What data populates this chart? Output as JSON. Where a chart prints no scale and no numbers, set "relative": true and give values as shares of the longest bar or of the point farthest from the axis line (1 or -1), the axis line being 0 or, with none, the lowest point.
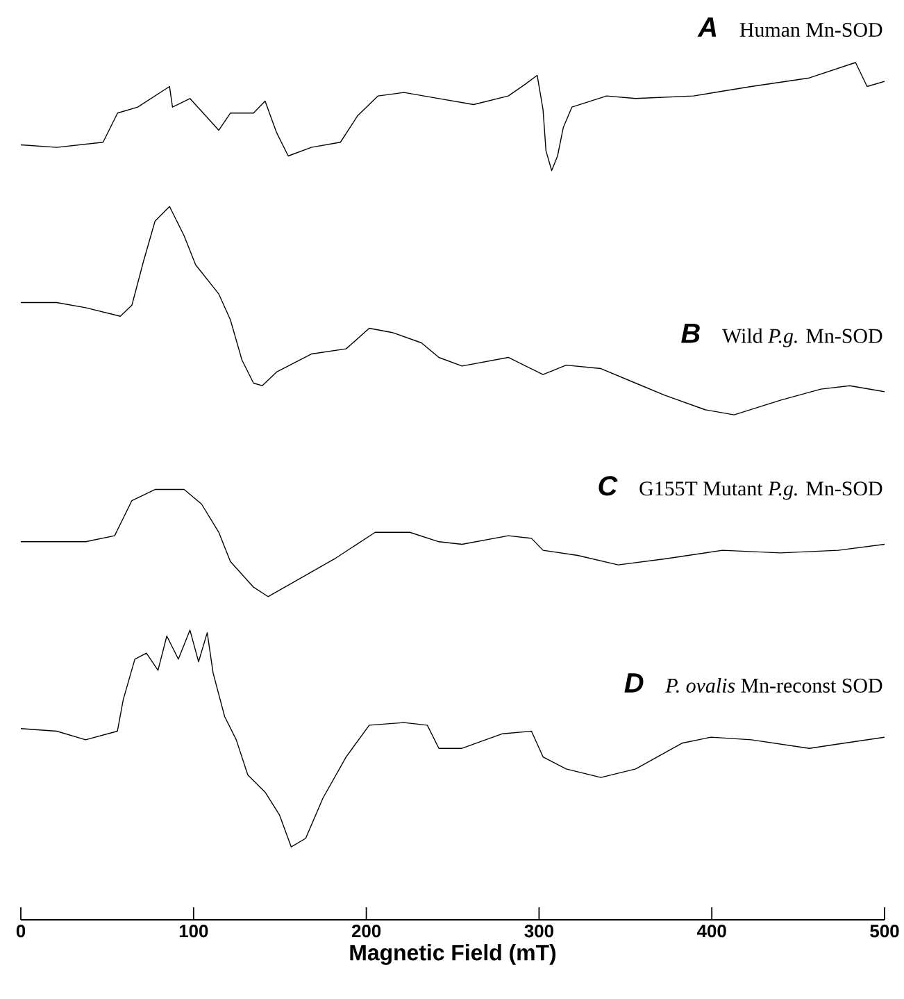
{
  "chart_data": {
    "type": "line",
    "xlabel": "Magnetic Field (mT)",
    "xlim": [
      0,
      500
    ],
    "xticks": [
      0,
      100,
      200,
      300,
      400,
      500
    ],
    "relative": true,
    "tick_labels": "x",
    "grid": false,
    "marker": "none",
    "line_style": "solid",
    "annotations": [
      "A",
      "B",
      "C",
      "D"
    ],
    "series": [
      {
        "name": "Human Mn-SOD",
        "color": "#000000",
        "x": [
          0,
          20.8,
          47.6,
          56.0,
          67.7,
          86.1,
          87.8,
          97.9,
          114.6,
          121.3,
          134.7,
          141.4,
          148.1,
          154.8,
          168.2,
          185.0,
          195.0,
          206.8,
          221.8,
          242.0,
          262.1,
          282.2,
          292.2,
          298.9,
          302.3,
          304.0,
          307.3,
          310.7,
          314.0,
          319.0,
          339.1,
          355.9,
          389.4,
          422.9,
          456.4,
          483.2,
          489.9,
          500
        ],
        "values": [
          0.904,
          0.901,
          0.907,
          0.941,
          0.948,
          0.972,
          0.948,
          0.958,
          0.921,
          0.941,
          0.941,
          0.955,
          0.918,
          0.891,
          0.901,
          0.907,
          0.938,
          0.961,
          0.965,
          0.958,
          0.951,
          0.961,
          0.975,
          0.985,
          0.945,
          0.897,
          0.874,
          0.891,
          0.924,
          0.948,
          0.961,
          0.958,
          0.961,
          0.972,
          0.982,
          1.0,
          0.972,
          0.978
        ]
      },
      {
        "name": "Wild *P.g.* Mn-SOD",
        "color": "#000000",
        "x": [
          0,
          20.8,
          37.5,
          57.6,
          64.3,
          71.0,
          77.7,
          86.1,
          94.5,
          101.2,
          114.6,
          121.3,
          128.0,
          134.7,
          139.7,
          148.1,
          168.2,
          188.3,
          201.7,
          215.1,
          231.9,
          242.0,
          255.4,
          282.2,
          302.3,
          315.7,
          335.8,
          355.9,
          372.7,
          396.1,
          412.9,
          439.7,
          463.1,
          479.9,
          500
        ],
        "values": [
          0.72,
          0.72,
          0.714,
          0.704,
          0.717,
          0.768,
          0.815,
          0.832,
          0.798,
          0.764,
          0.73,
          0.7,
          0.653,
          0.626,
          0.623,
          0.639,
          0.66,
          0.666,
          0.69,
          0.685,
          0.673,
          0.656,
          0.646,
          0.656,
          0.636,
          0.647,
          0.643,
          0.626,
          0.612,
          0.595,
          0.589,
          0.606,
          0.619,
          0.623,
          0.616
        ]
      },
      {
        "name": "G155T Mutant *P.g.* Mn-SOD",
        "color": "#000000",
        "x": [
          0,
          20.8,
          37.5,
          54.3,
          64.3,
          77.7,
          94.5,
          104.6,
          114.6,
          121.3,
          134.7,
          143.1,
          161.5,
          181.6,
          205.1,
          225.2,
          242.0,
          255.4,
          282.2,
          295.6,
          302.3,
          322.4,
          345.8,
          372.7,
          406.2,
          439.7,
          473.2,
          500
        ],
        "values": [
          0.441,
          0.441,
          0.441,
          0.448,
          0.489,
          0.502,
          0.502,
          0.485,
          0.452,
          0.418,
          0.388,
          0.377,
          0.398,
          0.421,
          0.452,
          0.452,
          0.441,
          0.438,
          0.448,
          0.445,
          0.431,
          0.425,
          0.414,
          0.421,
          0.431,
          0.428,
          0.431,
          0.438
        ]
      },
      {
        "name": "*P. ovalis* Mn-reconst SOD",
        "color": "#000000",
        "x": [
          0,
          20.8,
          37.5,
          55.9,
          59.3,
          66.0,
          72.7,
          79.4,
          84.5,
          91.2,
          97.9,
          102.9,
          107.9,
          111.3,
          118.0,
          124.7,
          131.4,
          141.4,
          149.8,
          156.5,
          164.9,
          174.9,
          188.3,
          201.7,
          221.8,
          235.3,
          242.0,
          255.4,
          278.8,
          295.6,
          302.3,
          315.7,
          335.8,
          355.9,
          382.7,
          399.5,
          422.9,
          456.4,
          476.5,
          500
        ],
        "values": [
          0.223,
          0.22,
          0.21,
          0.22,
          0.257,
          0.304,
          0.311,
          0.291,
          0.331,
          0.304,
          0.338,
          0.301,
          0.335,
          0.288,
          0.237,
          0.21,
          0.169,
          0.149,
          0.122,
          0.085,
          0.095,
          0.142,
          0.19,
          0.227,
          0.23,
          0.227,
          0.2,
          0.2,
          0.217,
          0.22,
          0.19,
          0.176,
          0.166,
          0.176,
          0.206,
          0.213,
          0.21,
          0.2,
          0.206,
          0.213
        ]
      }
    ]
  }
}
